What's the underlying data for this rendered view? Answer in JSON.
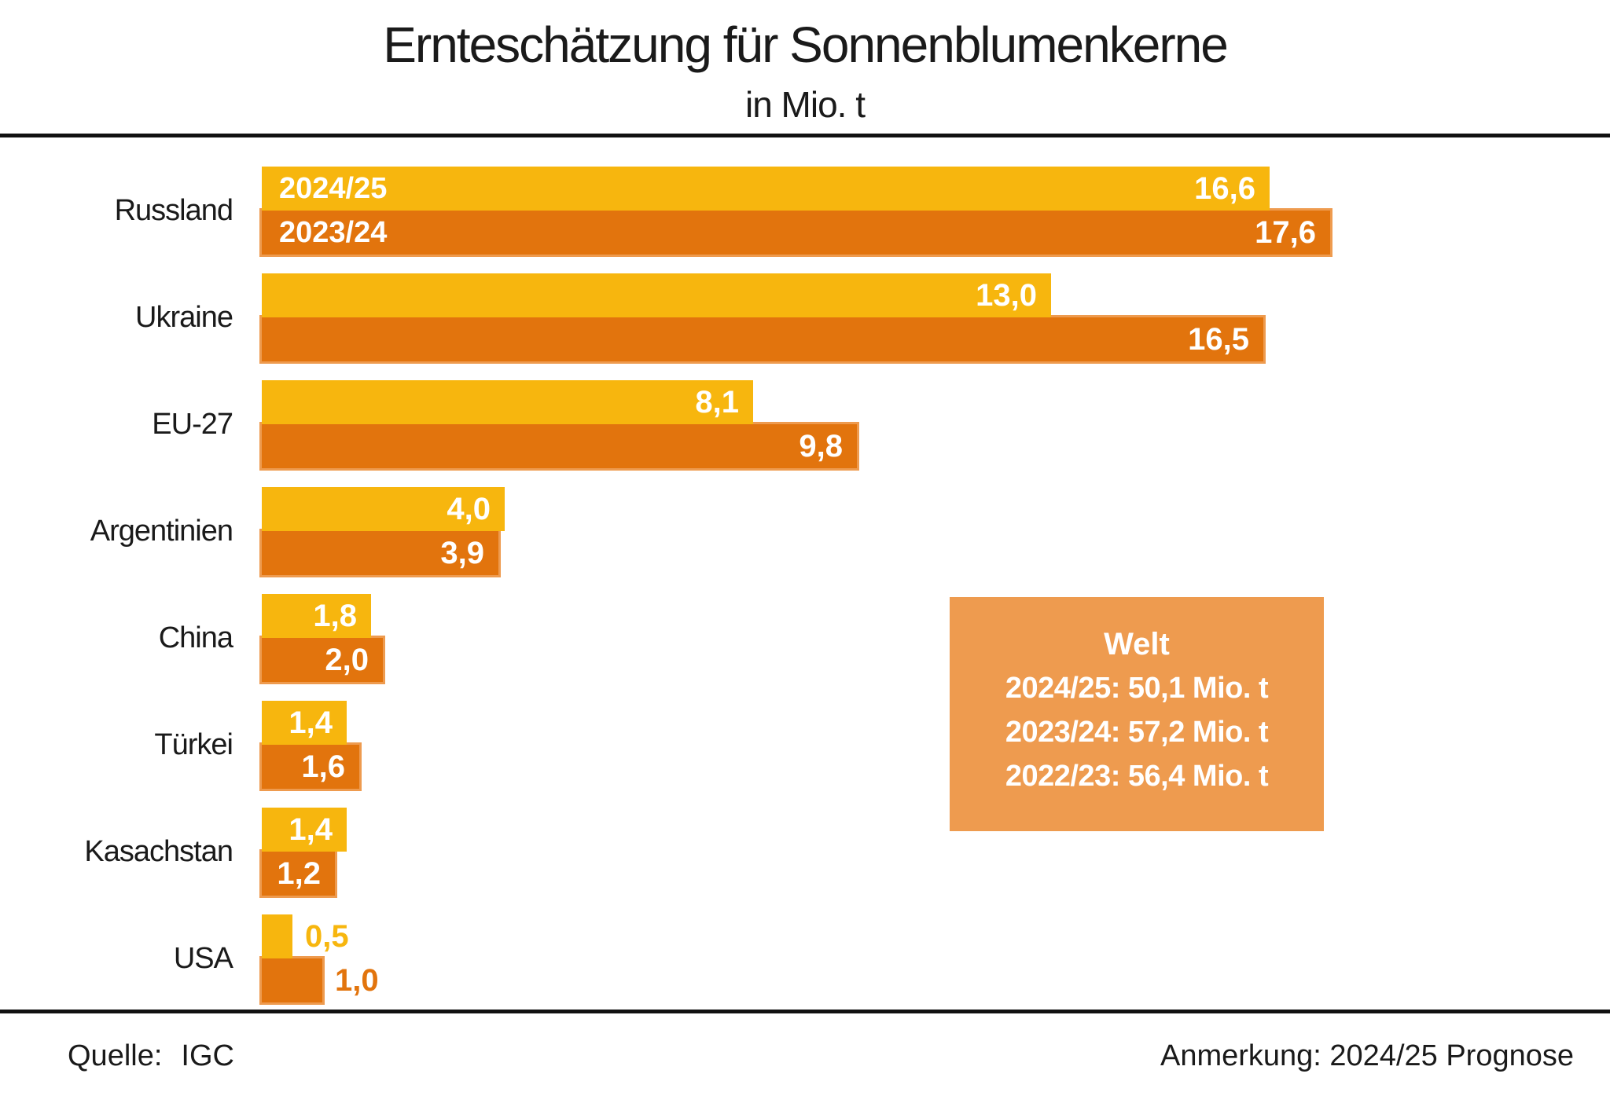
{
  "header": {
    "title": "Ernteschätzung für Sonnenblumenkerne",
    "subtitle": "in Mio. t"
  },
  "footer": {
    "source_label": "Quelle:",
    "source_value": "IGC",
    "note": "Anmerkung: 2024/25 Prognose"
  },
  "annotation_box": {
    "title": "Welt",
    "lines": [
      "2024/25: 50,1 Mio. t",
      "2023/24: 57,2 Mio. t",
      "2022/23: 56,4 Mio. t"
    ],
    "background": "#ee9b4f",
    "text_color": "#ffffff"
  },
  "colors": {
    "series_2024_25": "#f7b60e",
    "series_2023_24": "#e2740d",
    "orange_ring": "#ee9b4f",
    "rule": "#111111",
    "text": "#1a1a1a",
    "value_text": "#ffffff",
    "background": "#ffffff"
  },
  "chart_data": {
    "type": "bar",
    "orientation": "horizontal",
    "title": "Ernteschätzung für Sonnenblumenkerne",
    "unit_label": "in Mio. t",
    "grid": false,
    "value_axis": "hidden",
    "xlim": [
      0,
      18.6
    ],
    "legend_position": "inside-first-bars",
    "categories": [
      "Russland",
      "Ukraine",
      "EU-27",
      "Argentinien",
      "China",
      "Türkei",
      "Kasachstan",
      "USA"
    ],
    "series": [
      {
        "name": "2024/25",
        "color": "#f7b60e",
        "values": [
          16.6,
          13.0,
          8.1,
          4.0,
          1.8,
          1.4,
          1.4,
          0.5
        ],
        "labels": [
          "16,6",
          "13,0",
          "8,1",
          "4,0",
          "1,8",
          "1,4",
          "1,4",
          "0,5"
        ],
        "label_outside": [
          false,
          false,
          false,
          false,
          false,
          false,
          false,
          true
        ]
      },
      {
        "name": "2023/24",
        "color": "#e2740d",
        "values": [
          17.6,
          16.5,
          9.8,
          3.9,
          2.0,
          1.6,
          1.2,
          1.0
        ],
        "labels": [
          "17,6",
          "16,5",
          "9,8",
          "3,9",
          "2,0",
          "1,6",
          "1,2",
          "1,0"
        ],
        "label_outside": [
          false,
          false,
          false,
          false,
          false,
          false,
          false,
          true
        ]
      }
    ],
    "annotation": {
      "title": "Welt",
      "lines": [
        "2024/25: 50,1 Mio. t",
        "2023/24: 57,2 Mio. t",
        "2022/23: 56,4 Mio. t"
      ]
    },
    "note": "Anmerkung: 2024/25 Prognose",
    "source": "Quelle: IGC"
  }
}
